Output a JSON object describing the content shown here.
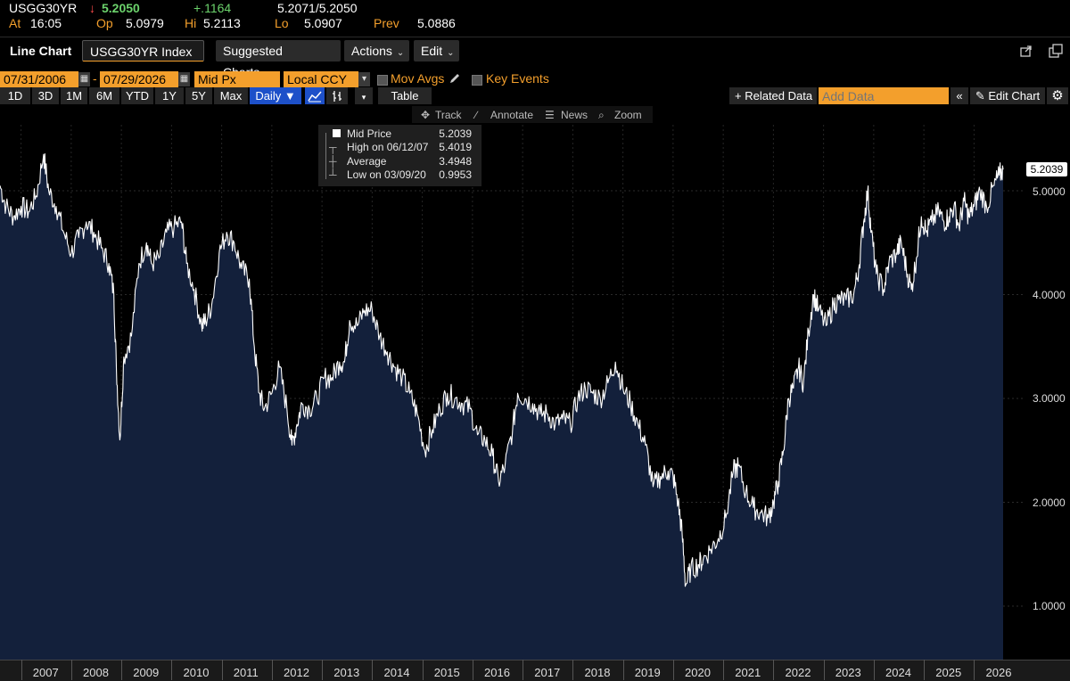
{
  "quote": {
    "ticker": "USGG30YR",
    "arrow": "↓",
    "last": "5.2050",
    "change": "+.1164",
    "bid_ask": "5.2071/5.2050",
    "time_label": "At",
    "time": "16:05",
    "open_label": "Op",
    "open": "5.0979",
    "high_label": "Hi",
    "high": "5.2113",
    "low_label": "Lo",
    "low": "5.0907",
    "prev_label": "Prev",
    "prev": "5.0886"
  },
  "toolbar": {
    "title": "Line Chart",
    "security": "USGG30YR Index",
    "suggested": "Suggested Charts",
    "actions": "Actions",
    "edit": "Edit"
  },
  "controls": {
    "start_date": "07/31/2006",
    "dash": "-",
    "end_date": "07/29/2026",
    "field": "Mid Px",
    "currency": "Local CCY",
    "mov_avgs": "Mov Avgs",
    "key_events": "Key Events",
    "periods": [
      "1D",
      "3D",
      "1M",
      "6M",
      "YTD",
      "1Y",
      "5Y",
      "Max"
    ],
    "frequency": "Daily ▼",
    "table": "Table",
    "related_data": "+ Related Data",
    "add_data_placeholder": "Add Data",
    "edit_chart": "Edit Chart"
  },
  "chart_tools": {
    "track": "Track",
    "annotate": "Annotate",
    "news": "News",
    "zoom": "Zoom"
  },
  "legend": {
    "series": "Mid Price",
    "series_value": "5.2039",
    "high_label": "High on 06/12/07",
    "high_value": "5.4019",
    "avg_label": "Average",
    "avg_value": "3.4948",
    "low_label": "Low on 03/09/20",
    "low_value": "0.9953"
  },
  "colors": {
    "accent": "#f39f2c",
    "up": "#6cd36c",
    "down": "#ff4d4d",
    "area_fill": "#13203b",
    "line": "#ffffff",
    "active_button": "#1d50c9"
  },
  "chart_data": {
    "type": "area",
    "title": "",
    "xlabel": "",
    "ylabel": "",
    "x_ticks": [
      "2007",
      "2008",
      "2009",
      "2010",
      "2011",
      "2012",
      "2013",
      "2014",
      "2015",
      "2016",
      "2017",
      "2018",
      "2019",
      "2020",
      "2021",
      "2022",
      "2023",
      "2024",
      "2025",
      "2026"
    ],
    "y_ticks": [
      "1.0000",
      "2.0000",
      "3.0000",
      "4.0000",
      "5.0000"
    ],
    "ylim": [
      0.6,
      5.85
    ],
    "xlim": [
      2006.58,
      2026.58
    ],
    "last_value_label": "5.2039",
    "series": [
      {
        "name": "Mid Price",
        "x": [
          2006.58,
          2006.7,
          2006.85,
          2007.0,
          2007.15,
          2007.3,
          2007.45,
          2007.55,
          2007.7,
          2007.85,
          2008.0,
          2008.15,
          2008.3,
          2008.45,
          2008.6,
          2008.75,
          2008.85,
          2008.9,
          2008.97,
          2009.05,
          2009.2,
          2009.35,
          2009.5,
          2009.6,
          2009.75,
          2009.9,
          2010.05,
          2010.2,
          2010.3,
          2010.45,
          2010.6,
          2010.68,
          2010.8,
          2010.95,
          2011.1,
          2011.25,
          2011.4,
          2011.55,
          2011.65,
          2011.75,
          2011.85,
          2012.0,
          2012.15,
          2012.3,
          2012.4,
          2012.5,
          2012.6,
          2012.75,
          2012.9,
          2013.05,
          2013.2,
          2013.35,
          2013.45,
          2013.55,
          2013.7,
          2013.85,
          2014.0,
          2014.15,
          2014.3,
          2014.45,
          2014.6,
          2014.75,
          2014.9,
          2015.05,
          2015.2,
          2015.35,
          2015.5,
          2015.65,
          2015.8,
          2015.95,
          2016.1,
          2016.25,
          2016.4,
          2016.52,
          2016.65,
          2016.8,
          2016.9,
          2017.05,
          2017.2,
          2017.35,
          2017.5,
          2017.65,
          2017.8,
          2017.95,
          2018.1,
          2018.25,
          2018.4,
          2018.55,
          2018.7,
          2018.85,
          2019.0,
          2019.15,
          2019.3,
          2019.45,
          2019.6,
          2019.75,
          2019.9,
          2020.0,
          2020.1,
          2020.18,
          2020.25,
          2020.35,
          2020.5,
          2020.6,
          2020.75,
          2020.9,
          2021.05,
          2021.2,
          2021.3,
          2021.45,
          2021.6,
          2021.75,
          2021.9,
          2022.0,
          2022.1,
          2022.2,
          2022.3,
          2022.4,
          2022.5,
          2022.6,
          2022.7,
          2022.8,
          2022.9,
          2023.05,
          2023.2,
          2023.3,
          2023.45,
          2023.6,
          2023.7,
          2023.8,
          2023.88,
          2023.95,
          2024.05,
          2024.2,
          2024.3,
          2024.45,
          2024.55,
          2024.65,
          2024.75,
          2024.85,
          2024.95,
          2025.05,
          2025.15,
          2025.3,
          2025.4,
          2025.5,
          2025.6,
          2025.7,
          2025.8,
          2025.9,
          2026.0,
          2026.12,
          2026.25,
          2026.4,
          2026.5,
          2026.58
        ],
        "values": [
          5.05,
          4.85,
          4.75,
          4.85,
          4.8,
          4.95,
          5.35,
          5.0,
          4.85,
          4.6,
          4.4,
          4.55,
          4.7,
          4.6,
          4.45,
          4.3,
          4.0,
          3.3,
          2.6,
          3.4,
          3.6,
          4.3,
          4.5,
          4.3,
          4.35,
          4.6,
          4.65,
          4.7,
          4.3,
          4.05,
          3.7,
          3.75,
          3.9,
          4.4,
          4.6,
          4.5,
          4.25,
          4.15,
          3.5,
          3.05,
          2.9,
          3.05,
          3.3,
          2.9,
          2.55,
          2.75,
          2.95,
          2.9,
          3.0,
          3.2,
          3.2,
          3.35,
          3.35,
          3.75,
          3.7,
          3.85,
          3.85,
          3.6,
          3.45,
          3.3,
          3.2,
          3.05,
          2.85,
          2.5,
          2.7,
          2.9,
          3.05,
          3.0,
          2.95,
          2.9,
          2.65,
          2.6,
          2.45,
          2.2,
          2.35,
          2.7,
          3.05,
          3.0,
          2.95,
          2.85,
          2.85,
          2.75,
          2.8,
          2.75,
          3.0,
          3.1,
          3.05,
          3.0,
          3.15,
          3.35,
          3.1,
          2.95,
          2.75,
          2.55,
          2.15,
          2.25,
          2.3,
          2.25,
          2.0,
          1.7,
          1.2,
          1.35,
          1.4,
          1.45,
          1.55,
          1.65,
          1.85,
          2.3,
          2.35,
          2.1,
          1.95,
          1.9,
          1.85,
          2.0,
          2.2,
          2.5,
          3.0,
          3.1,
          3.3,
          3.15,
          3.65,
          4.0,
          3.85,
          3.7,
          3.9,
          3.95,
          3.95,
          4.0,
          4.25,
          4.7,
          5.0,
          4.6,
          4.2,
          4.05,
          4.3,
          4.4,
          4.5,
          4.25,
          4.05,
          4.35,
          4.75,
          4.6,
          4.7,
          4.8,
          4.7,
          4.75,
          4.85,
          4.65,
          4.9,
          4.75,
          4.85,
          5.0,
          4.85,
          5.05,
          5.15,
          5.2039
        ]
      }
    ]
  }
}
